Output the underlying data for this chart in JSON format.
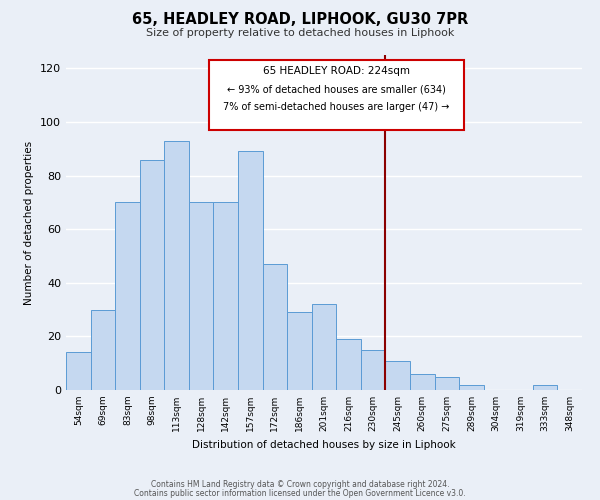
{
  "title": "65, HEADLEY ROAD, LIPHOOK, GU30 7PR",
  "subtitle": "Size of property relative to detached houses in Liphook",
  "xlabel": "Distribution of detached houses by size in Liphook",
  "ylabel": "Number of detached properties",
  "categories": [
    "54sqm",
    "69sqm",
    "83sqm",
    "98sqm",
    "113sqm",
    "128sqm",
    "142sqm",
    "157sqm",
    "172sqm",
    "186sqm",
    "201sqm",
    "216sqm",
    "230sqm",
    "245sqm",
    "260sqm",
    "275sqm",
    "289sqm",
    "304sqm",
    "319sqm",
    "333sqm",
    "348sqm"
  ],
  "values": [
    14,
    30,
    70,
    86,
    93,
    70,
    70,
    89,
    47,
    29,
    32,
    19,
    15,
    11,
    6,
    5,
    2,
    0,
    0,
    2,
    0
  ],
  "bar_color": "#c5d8f0",
  "bar_edge_color": "#5b9bd5",
  "vline_x_index": 12.5,
  "vline_color": "#8b0000",
  "annotation_title": "65 HEADLEY ROAD: 224sqm",
  "annotation_line1": "← 93% of detached houses are smaller (634)",
  "annotation_line2": "7% of semi-detached houses are larger (47) →",
  "annotation_box_color": "#ffffff",
  "annotation_box_edge": "#cc0000",
  "ylim": [
    0,
    125
  ],
  "yticks": [
    0,
    20,
    40,
    60,
    80,
    100,
    120
  ],
  "footer1": "Contains HM Land Registry data © Crown copyright and database right 2024.",
  "footer2": "Contains public sector information licensed under the Open Government Licence v3.0.",
  "bg_color": "#eaeff7",
  "plot_bg_color": "#eaeff7"
}
